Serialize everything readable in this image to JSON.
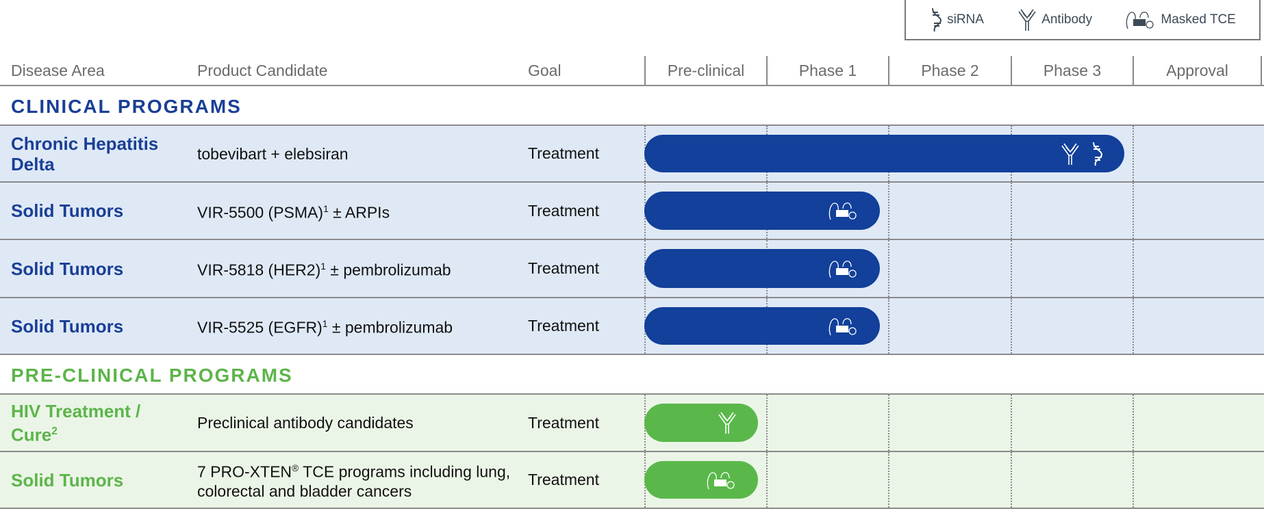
{
  "legend": [
    {
      "icon": "sirna-icon",
      "label": "siRNA"
    },
    {
      "icon": "antibody-icon",
      "label": "Antibody"
    },
    {
      "icon": "masked-tce-icon",
      "label": "Masked TCE"
    }
  ],
  "header": {
    "disease_area": "Disease Area",
    "product_candidate": "Product Candidate",
    "goal": "Goal",
    "stages": [
      "Pre-clinical",
      "Phase 1",
      "Phase 2",
      "Phase 3",
      "Approval"
    ]
  },
  "colors": {
    "clinical_text": "#1a3f96",
    "clinical_bar": "#12409a",
    "clinical_bg": "#dfe9f6",
    "preclinical_text": "#5cb54a",
    "preclinical_bar": "#5ab84b",
    "preclinical_bg": "#ebf5e7"
  },
  "sections": [
    {
      "title": "CLINICAL PROGRAMS",
      "theme": "clinical",
      "rows": [
        {
          "disease": "Chronic Hepatitis Delta",
          "disease_sup": "",
          "product": "tobevibart + elebsiran",
          "product_sup": "",
          "product_suffix": "",
          "goal": "Treatment",
          "stage_reached": "Phase 3",
          "icons": [
            "antibody-icon",
            "sirna-icon"
          ]
        },
        {
          "disease": "Solid Tumors",
          "disease_sup": "",
          "product": "VIR-5500 (PSMA)",
          "product_sup": "1",
          "product_suffix": " ±  ARPIs",
          "goal": "Treatment",
          "stage_reached": "Phase 1",
          "icons": [
            "masked-tce-icon"
          ]
        },
        {
          "disease": "Solid Tumors",
          "disease_sup": "",
          "product": "VIR-5818 (HER2)",
          "product_sup": "1",
          "product_suffix": " ± pembrolizumab",
          "goal": "Treatment",
          "stage_reached": "Phase 1",
          "icons": [
            "masked-tce-icon"
          ]
        },
        {
          "disease": "Solid Tumors",
          "disease_sup": "",
          "product": "VIR-5525 (EGFR)",
          "product_sup": "1",
          "product_suffix": " ± pembrolizumab",
          "goal": "Treatment",
          "stage_reached": "Phase 1",
          "icons": [
            "masked-tce-icon"
          ]
        }
      ]
    },
    {
      "title": "PRE-CLINICAL PROGRAMS",
      "theme": "preclinical",
      "rows": [
        {
          "disease": "HIV Treatment  / Cure",
          "disease_sup": "2",
          "product": "Preclinical antibody candidates",
          "product_sup": "",
          "product_suffix": "",
          "goal": "Treatment",
          "stage_reached": "Pre-clinical",
          "icons": [
            "antibody-icon"
          ]
        },
        {
          "disease": "Solid Tumors",
          "disease_sup": "",
          "product": "7 PRO-XTEN",
          "product_sup": "®",
          "product_suffix": " TCE programs including lung, colorectal and bladder cancers",
          "goal": "Treatment",
          "stage_reached": "Pre-clinical",
          "icons": [
            "masked-tce-icon"
          ]
        }
      ]
    }
  ]
}
